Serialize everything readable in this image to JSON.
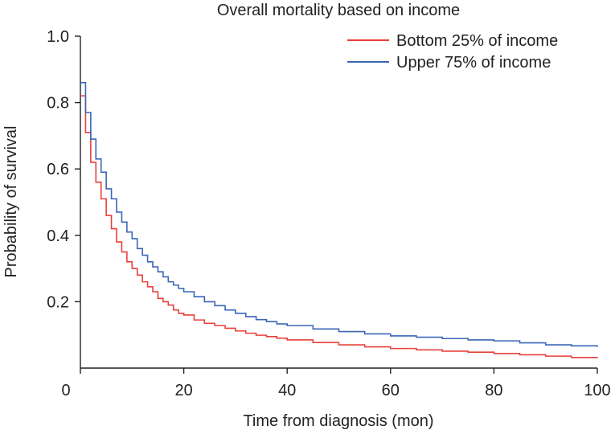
{
  "chart_data": {
    "type": "line",
    "step": true,
    "title": "Overall mortality based on income",
    "xlabel": "Time from diagnosis (mon)",
    "ylabel": "Probability of survival",
    "xlim": [
      0,
      100
    ],
    "ylim": [
      0,
      1.0
    ],
    "xticks": [
      0,
      20,
      40,
      60,
      80,
      100
    ],
    "xtick_labels": [
      "0",
      "20",
      "40",
      "60",
      "80",
      "100"
    ],
    "yticks": [
      0.2,
      0.4,
      0.6,
      0.8,
      1.0
    ],
    "ytick_labels": [
      "0.2",
      "0.4",
      "0.6",
      "0.8",
      "1.0"
    ],
    "legend_position": "top-right",
    "series": [
      {
        "name": "Bottom 25% of income",
        "color": "#e8413a",
        "x": [
          0,
          1,
          2,
          3,
          4,
          5,
          6,
          7,
          8,
          9,
          10,
          11,
          12,
          13,
          14,
          15,
          16,
          17,
          18,
          19,
          20,
          22,
          24,
          26,
          28,
          30,
          32,
          34,
          36,
          38,
          40,
          45,
          50,
          55,
          60,
          65,
          70,
          75,
          80,
          85,
          90,
          95,
          100
        ],
        "y": [
          0.82,
          0.71,
          0.62,
          0.56,
          0.51,
          0.46,
          0.42,
          0.38,
          0.35,
          0.32,
          0.3,
          0.28,
          0.26,
          0.245,
          0.23,
          0.21,
          0.2,
          0.19,
          0.175,
          0.165,
          0.16,
          0.145,
          0.135,
          0.128,
          0.12,
          0.112,
          0.105,
          0.099,
          0.095,
          0.09,
          0.085,
          0.077,
          0.07,
          0.064,
          0.059,
          0.055,
          0.051,
          0.048,
          0.044,
          0.04,
          0.036,
          0.032,
          0.03
        ]
      },
      {
        "name": "Upper 75% of income",
        "color": "#3a66b8",
        "x": [
          0,
          1,
          2,
          3,
          4,
          5,
          6,
          7,
          8,
          9,
          10,
          11,
          12,
          13,
          14,
          15,
          16,
          17,
          18,
          19,
          20,
          22,
          24,
          26,
          28,
          30,
          32,
          34,
          36,
          38,
          40,
          45,
          50,
          55,
          60,
          65,
          70,
          75,
          80,
          85,
          90,
          95,
          100
        ],
        "y": [
          0.86,
          0.77,
          0.69,
          0.63,
          0.59,
          0.54,
          0.51,
          0.47,
          0.44,
          0.41,
          0.39,
          0.36,
          0.34,
          0.32,
          0.305,
          0.29,
          0.275,
          0.26,
          0.25,
          0.24,
          0.23,
          0.215,
          0.2,
          0.188,
          0.175,
          0.165,
          0.155,
          0.146,
          0.14,
          0.133,
          0.128,
          0.118,
          0.11,
          0.103,
          0.097,
          0.093,
          0.089,
          0.085,
          0.082,
          0.076,
          0.07,
          0.067,
          0.064
        ]
      }
    ]
  }
}
